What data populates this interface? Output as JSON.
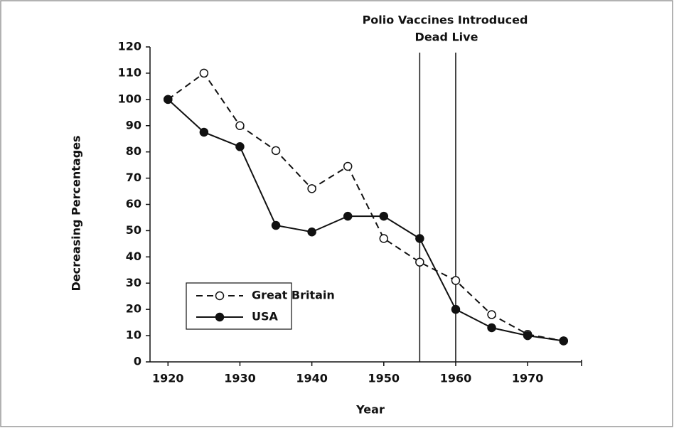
{
  "chart_data": {
    "type": "line",
    "annotations": [
      "Polio Vaccines Introduced",
      "Dead Live"
    ],
    "xlabel": "Year",
    "ylabel": "Decreasing Percentages",
    "x": [
      1920,
      1925,
      1930,
      1935,
      1940,
      1945,
      1950,
      1955,
      1960,
      1965,
      1970,
      1975
    ],
    "series": [
      {
        "name": "Great Britain",
        "color": "#111111",
        "line_style": "dashed",
        "marker_fill": "#ffffff",
        "values": [
          100,
          110,
          90,
          80.5,
          66,
          74.5,
          47,
          38,
          31,
          18,
          10.5,
          8
        ]
      },
      {
        "name": "USA",
        "color": "#111111",
        "line_style": "solid",
        "marker_fill": "#111111",
        "values": [
          100,
          87.5,
          82,
          52,
          49.5,
          55.5,
          55.5,
          47,
          20,
          13,
          10,
          8
        ]
      }
    ],
    "vlines": [
      1955,
      1960
    ],
    "xlim": [
      1917.5,
      1977.5
    ],
    "ylim": [
      0,
      120
    ],
    "xticks": [
      1920,
      1930,
      1940,
      1950,
      1960,
      1970
    ],
    "yticks": [
      0,
      10,
      20,
      30,
      40,
      50,
      60,
      70,
      80,
      90,
      100,
      110,
      120
    ],
    "grid": false,
    "legend": "lower left"
  }
}
